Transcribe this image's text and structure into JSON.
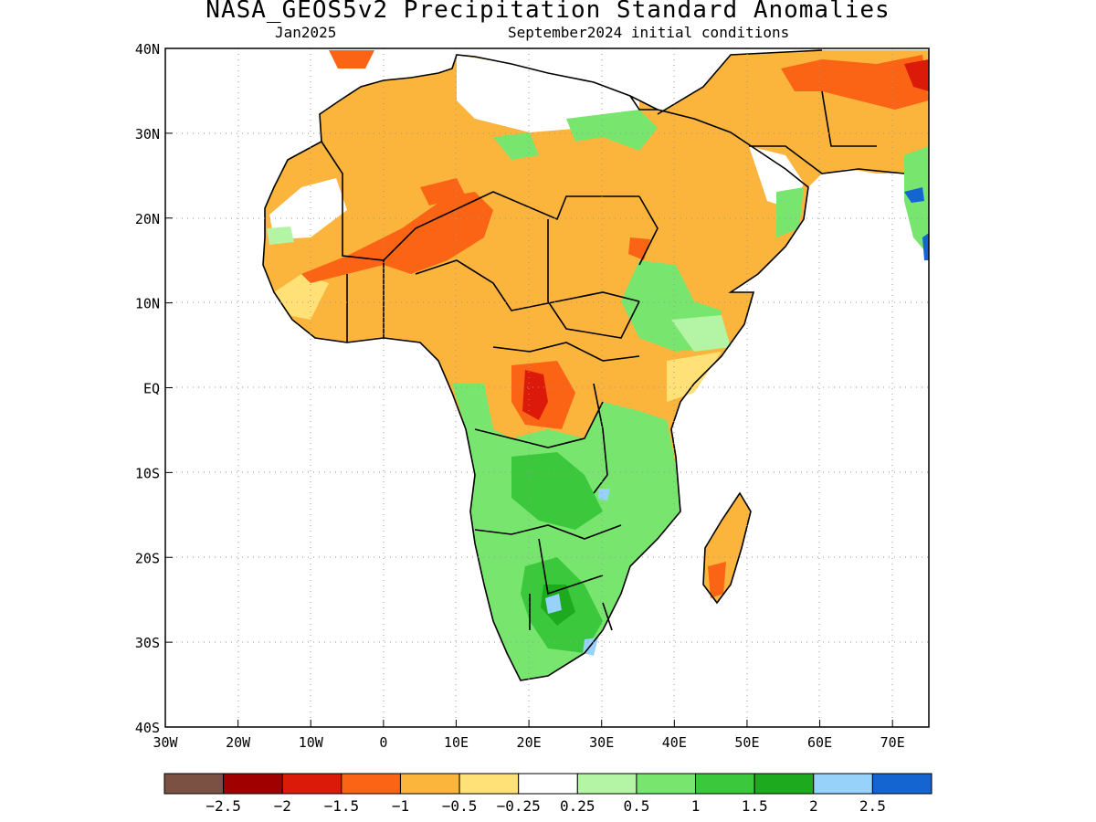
{
  "title": "NASA_GEOS5v2 Precipitation Standard Anomalies",
  "subtitle_month": "Jan2025",
  "subtitle_init": "September2024 initial conditions",
  "map": {
    "lon_range": [
      -30,
      75
    ],
    "lat_range": [
      -40,
      40
    ],
    "lon_ticks": [
      "30W",
      "20W",
      "10W",
      "0",
      "10E",
      "20E",
      "30E",
      "40E",
      "50E",
      "60E",
      "70E"
    ],
    "lat_ticks": [
      "40N",
      "30N",
      "20N",
      "10N",
      "EQ",
      "10S",
      "20S",
      "30S",
      "40S"
    ],
    "grid": true
  },
  "colorbar": {
    "colors": [
      "#7b5143",
      "#a00000",
      "#dc1a0a",
      "#fa6414",
      "#fbb43c",
      "#ffe178",
      "#ffffff",
      "#b4f5a5",
      "#78e66e",
      "#3cc83c",
      "#1eaa1e",
      "#96d2fa",
      "#1464d2"
    ],
    "labels": [
      "−2.5",
      "−2",
      "−1.5",
      "−1",
      "−0.5",
      "−0.25",
      "0.25",
      "0.5",
      "1",
      "1.5",
      "2",
      "2.5"
    ]
  }
}
